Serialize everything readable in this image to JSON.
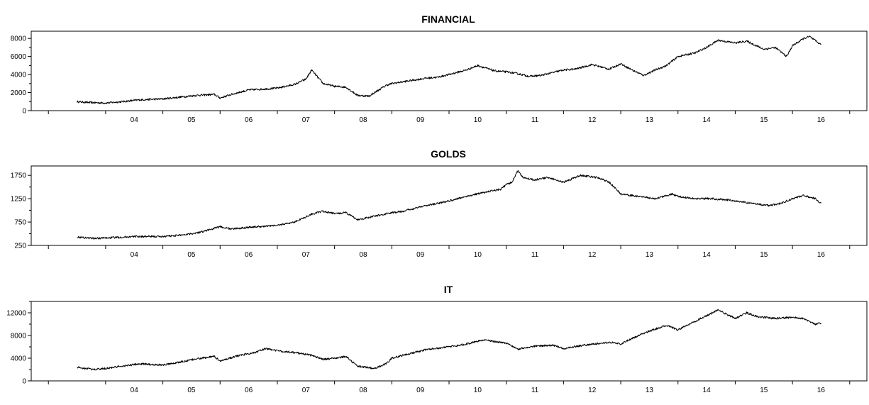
{
  "chart_data": [
    {
      "type": "line",
      "title": "FINANCIAL",
      "xlabel": "",
      "ylabel": "",
      "x_ticks": [
        "04",
        "05",
        "06",
        "07",
        "08",
        "09",
        "10",
        "11",
        "12",
        "13",
        "14",
        "15",
        "16"
      ],
      "y_ticks": [
        "0",
        "2000",
        "4000",
        "6000",
        "8000"
      ],
      "ylim": [
        0,
        8800
      ],
      "xlim": [
        2002.7,
        2017.3
      ],
      "grid": false,
      "series": [
        {
          "x": [
            2003.5,
            2003.7,
            2004.0,
            2004.3,
            2004.6,
            2005.0,
            2005.3,
            2005.6,
            2005.9,
            2006.0,
            2006.2,
            2006.5,
            2006.8,
            2007.0,
            2007.3,
            2007.5,
            2007.6,
            2007.8,
            2008.0,
            2008.2,
            2008.4,
            2008.6,
            2008.7,
            2008.9,
            2009.0,
            2009.2,
            2009.4,
            2009.6,
            2009.8,
            2010.0,
            2010.3,
            2010.5,
            2010.8,
            2011.0,
            2011.2,
            2011.4,
            2011.6,
            2011.8,
            2012.0,
            2012.2,
            2012.5,
            2012.8,
            2013.0,
            2013.2,
            2013.4,
            2013.6,
            2013.8,
            2014.0,
            2014.3,
            2014.5,
            2014.7,
            2014.9,
            2015.0,
            2015.2,
            2015.5,
            2015.7,
            2015.9,
            2016.0,
            2016.2,
            2016.3,
            2016.5
          ],
          "y": [
            1000,
            900,
            850,
            1000,
            1200,
            1300,
            1500,
            1700,
            1800,
            1400,
            1800,
            2300,
            2400,
            2500,
            2900,
            3500,
            4500,
            3000,
            2700,
            2600,
            1700,
            1600,
            2000,
            2800,
            3000,
            3200,
            3400,
            3600,
            3700,
            4000,
            4500,
            5000,
            4400,
            4300,
            4100,
            3800,
            3900,
            4200,
            4500,
            4600,
            5100,
            4600,
            5200,
            4500,
            3900,
            4500,
            5000,
            6000,
            6400,
            7000,
            7800,
            7600,
            7500,
            7700,
            6800,
            7000,
            6000,
            7200,
            8000,
            8200,
            7300
          ]
        }
      ]
    },
    {
      "type": "line",
      "title": "GOLDS",
      "xlabel": "",
      "ylabel": "",
      "x_ticks": [
        "04",
        "05",
        "06",
        "07",
        "08",
        "09",
        "10",
        "11",
        "12",
        "13",
        "14",
        "15",
        "16"
      ],
      "y_ticks": [
        "250",
        "750",
        "1250",
        "1750"
      ],
      "ylim": [
        250,
        1950
      ],
      "xlim": [
        2002.7,
        2017.3
      ],
      "grid": false,
      "series": [
        {
          "x": [
            2003.5,
            2003.8,
            2004.0,
            2004.5,
            2005.0,
            2005.3,
            2005.6,
            2005.8,
            2006.0,
            2006.2,
            2006.5,
            2006.8,
            2007.0,
            2007.3,
            2007.6,
            2007.8,
            2008.0,
            2008.2,
            2008.4,
            2008.6,
            2008.8,
            2009.0,
            2009.2,
            2009.5,
            2009.8,
            2010.0,
            2010.3,
            2010.6,
            2010.9,
            2011.0,
            2011.1,
            2011.2,
            2011.3,
            2011.5,
            2011.7,
            2011.9,
            2012.0,
            2012.3,
            2012.6,
            2012.8,
            2013.0,
            2013.3,
            2013.6,
            2013.9,
            2014.0,
            2014.3,
            2014.6,
            2014.9,
            2015.0,
            2015.3,
            2015.6,
            2015.8,
            2016.0,
            2016.2,
            2016.4,
            2016.5
          ],
          "y": [
            430,
            400,
            410,
            440,
            440,
            470,
            520,
            580,
            650,
            600,
            640,
            660,
            680,
            750,
            920,
            980,
            930,
            950,
            800,
            850,
            900,
            950,
            980,
            1080,
            1150,
            1200,
            1300,
            1380,
            1450,
            1550,
            1600,
            1850,
            1700,
            1650,
            1700,
            1650,
            1600,
            1750,
            1700,
            1600,
            1350,
            1300,
            1250,
            1350,
            1300,
            1250,
            1250,
            1220,
            1200,
            1150,
            1100,
            1150,
            1250,
            1320,
            1250,
            1150
          ]
        }
      ]
    },
    {
      "type": "line",
      "title": "IT",
      "xlabel": "",
      "ylabel": "",
      "x_ticks": [
        "04",
        "05",
        "06",
        "07",
        "08",
        "09",
        "10",
        "11",
        "12",
        "13",
        "14",
        "15",
        "16"
      ],
      "y_ticks": [
        "0",
        "4000",
        "8000",
        "12000"
      ],
      "ylim": [
        0,
        14000
      ],
      "xlim": [
        2002.7,
        2017.3
      ],
      "grid": false,
      "series": [
        {
          "x": [
            2003.5,
            2003.8,
            2004.0,
            2004.3,
            2004.6,
            2005.0,
            2005.3,
            2005.6,
            2005.9,
            2006.0,
            2006.3,
            2006.6,
            2006.8,
            2007.0,
            2007.3,
            2007.6,
            2007.8,
            2008.0,
            2008.2,
            2008.4,
            2008.7,
            2008.9,
            2009.0,
            2009.3,
            2009.6,
            2010.0,
            2010.3,
            2010.6,
            2010.9,
            2011.0,
            2011.2,
            2011.5,
            2011.8,
            2012.0,
            2012.3,
            2012.6,
            2012.8,
            2013.0,
            2013.2,
            2013.5,
            2013.8,
            2014.0,
            2014.3,
            2014.5,
            2014.7,
            2014.9,
            2015.0,
            2015.2,
            2015.4,
            2015.7,
            2016.0,
            2016.2,
            2016.4,
            2016.5
          ],
          "y": [
            2400,
            2000,
            2200,
            2600,
            3000,
            2800,
            3300,
            3900,
            4300,
            3500,
            4400,
            5000,
            5700,
            5300,
            5000,
            4500,
            3800,
            4000,
            4300,
            2600,
            2200,
            3000,
            4000,
            4800,
            5500,
            6000,
            6500,
            7200,
            6800,
            6700,
            5600,
            6100,
            6300,
            5700,
            6200,
            6600,
            6800,
            6500,
            7500,
            8800,
            9800,
            9000,
            10500,
            11500,
            12500,
            11500,
            11000,
            12000,
            11300,
            11000,
            11200,
            11000,
            10000,
            10200
          ]
        }
      ]
    }
  ]
}
